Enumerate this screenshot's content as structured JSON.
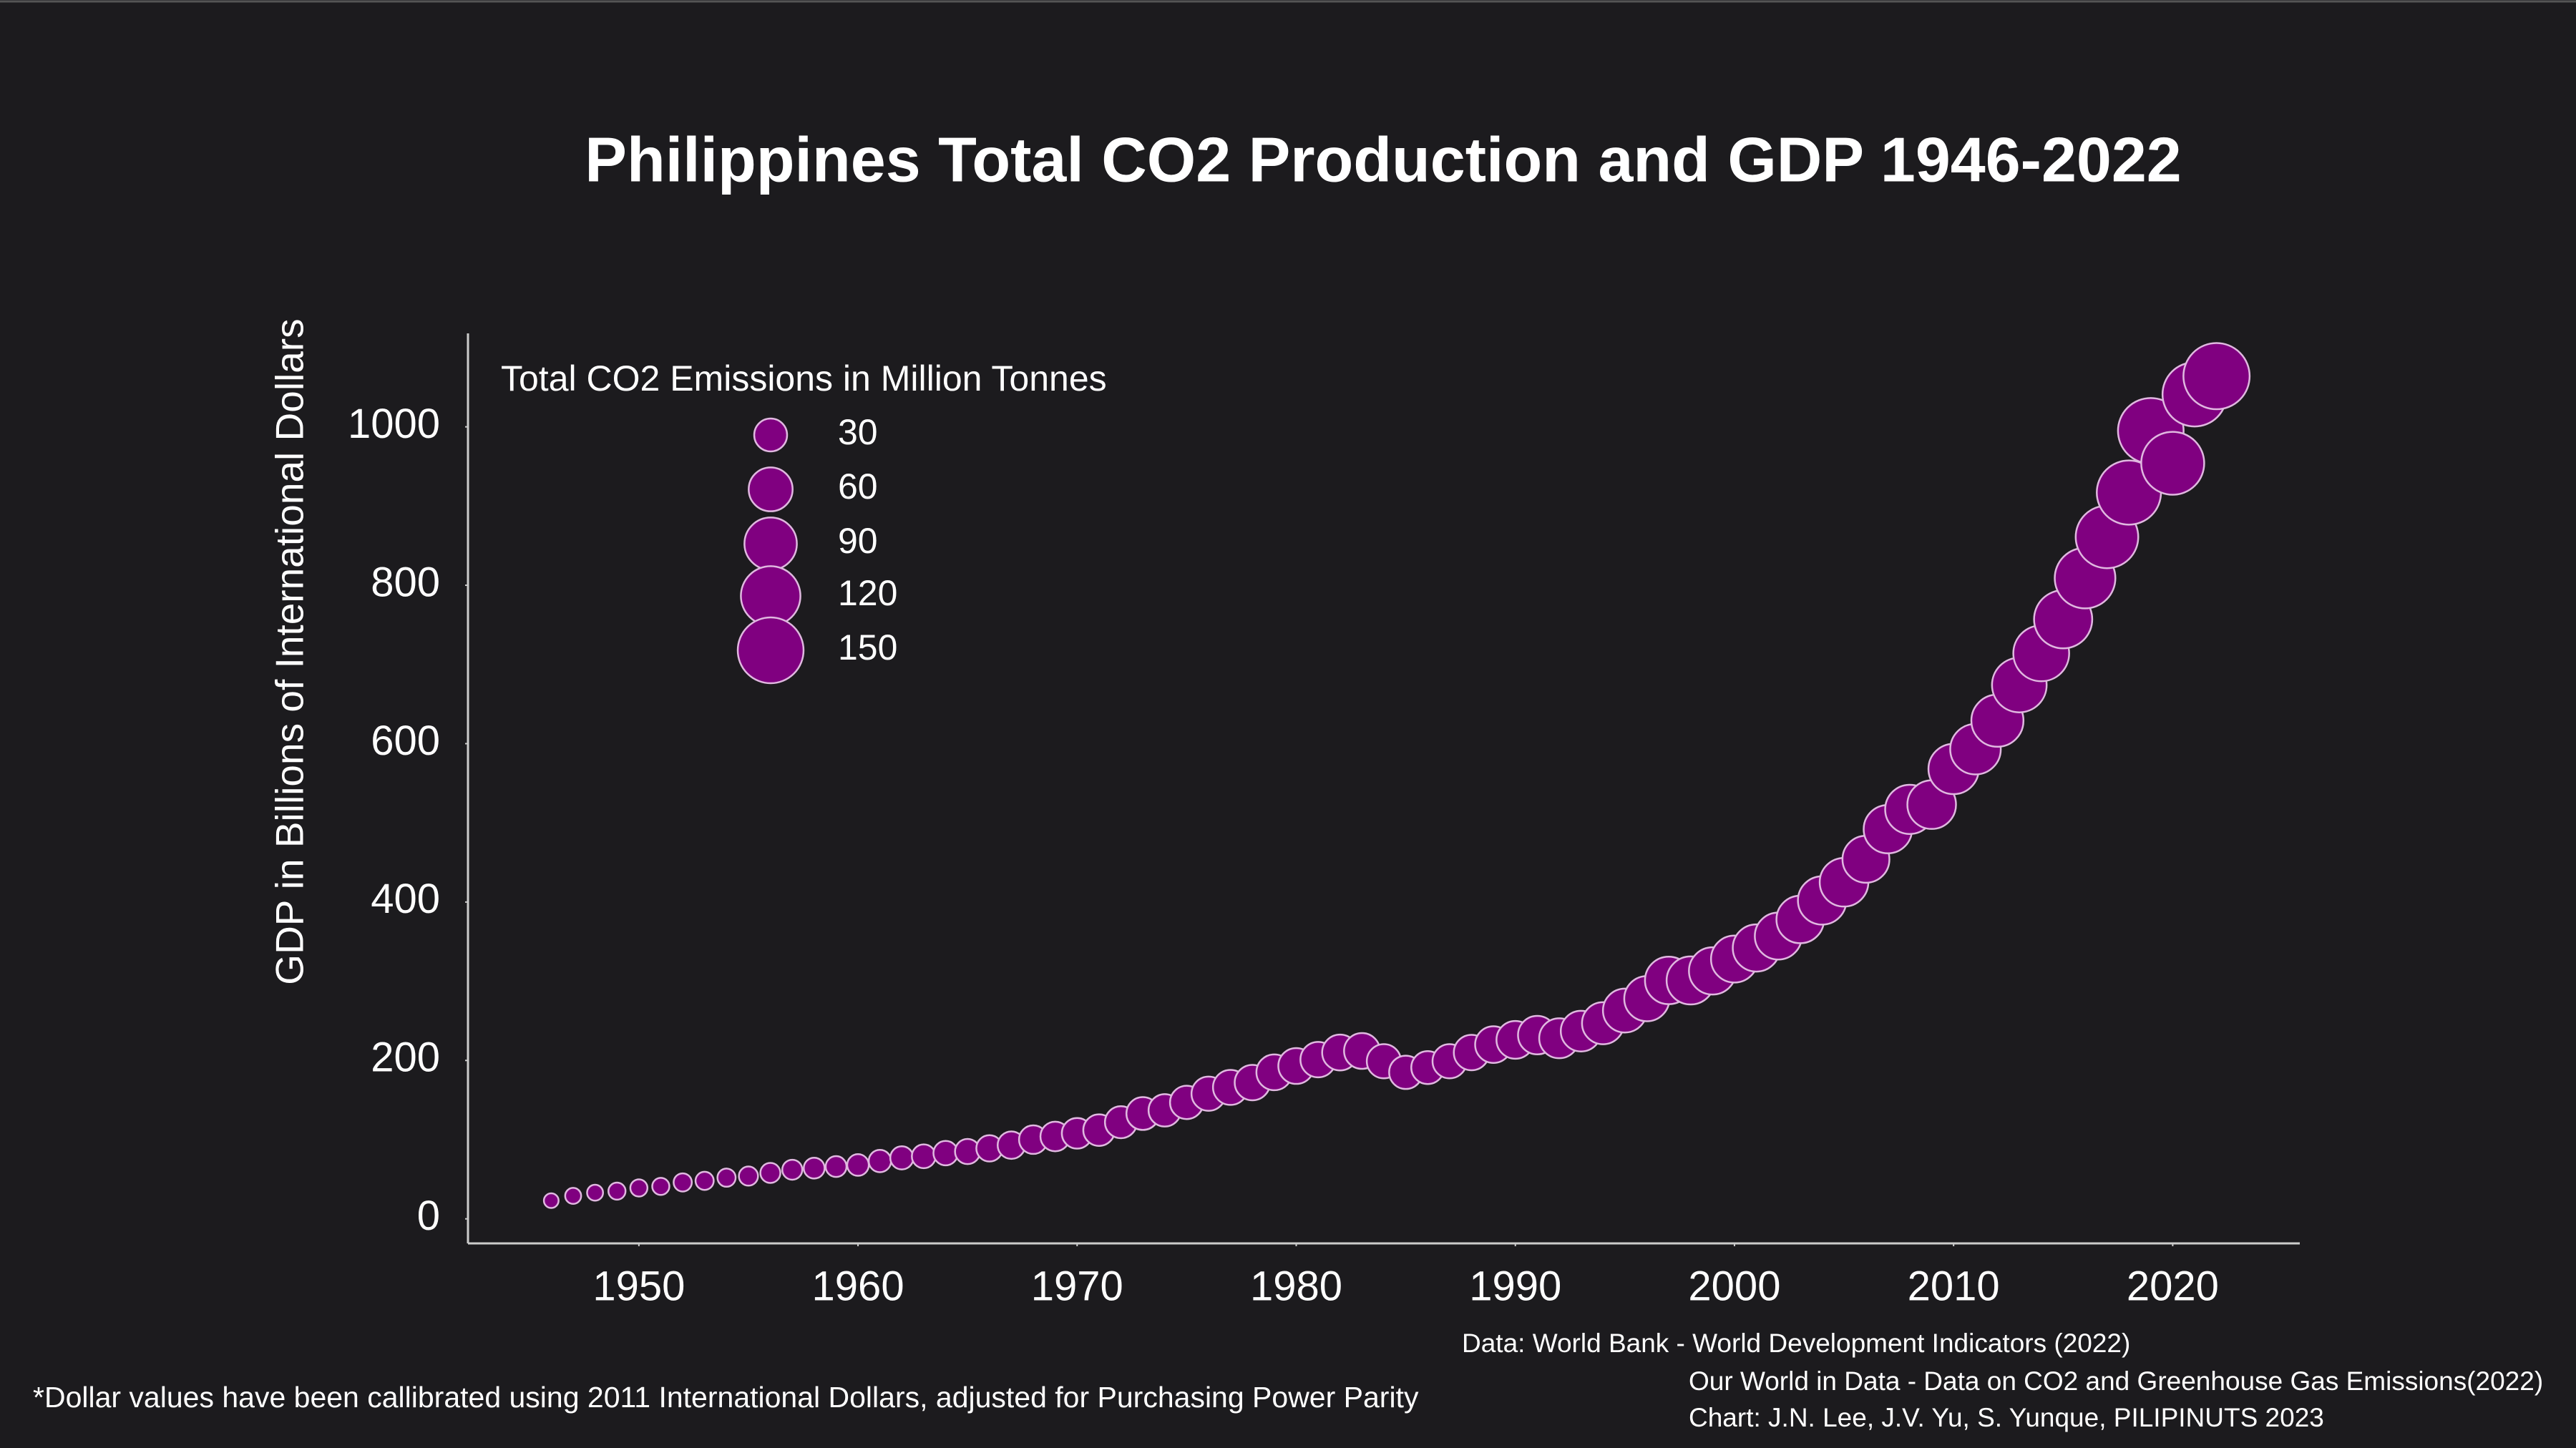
{
  "chart_data": {
    "type": "scatter",
    "title": "Philippines Total CO2 Production and GDP 1946-2022",
    "y_label": "GDP in Billions of International Dollars",
    "x": [
      1946,
      1947,
      1948,
      1949,
      1950,
      1951,
      1952,
      1953,
      1954,
      1955,
      1956,
      1957,
      1958,
      1959,
      1960,
      1961,
      1962,
      1963,
      1964,
      1965,
      1966,
      1967,
      1968,
      1969,
      1970,
      1971,
      1972,
      1973,
      1974,
      1975,
      1976,
      1977,
      1978,
      1979,
      1980,
      1981,
      1982,
      1983,
      1984,
      1985,
      1986,
      1987,
      1988,
      1989,
      1990,
      1991,
      1992,
      1993,
      1994,
      1995,
      1996,
      1997,
      1998,
      1999,
      2000,
      2001,
      2002,
      2003,
      2004,
      2005,
      2006,
      2007,
      2008,
      2009,
      2010,
      2011,
      2012,
      2013,
      2014,
      2015,
      2016,
      2017,
      2018,
      2019,
      2020,
      2021,
      2022
    ],
    "values": [
      23,
      29,
      33,
      35,
      39,
      41,
      46,
      48,
      52,
      54,
      58,
      62,
      64,
      66,
      68,
      73,
      77,
      79,
      83,
      85,
      89,
      93,
      100,
      104,
      108,
      112,
      122,
      133,
      137,
      147,
      158,
      166,
      172,
      185,
      193,
      201,
      210,
      212,
      199,
      185,
      191,
      199,
      210,
      220,
      226,
      232,
      228,
      237,
      247,
      263,
      278,
      301,
      301,
      313,
      328,
      342,
      357,
      378,
      402,
      425,
      454,
      492,
      517,
      523,
      568,
      593,
      629,
      674,
      714,
      757,
      809,
      861,
      917,
      995,
      954,
      1041,
      1064
    ],
    "sizes": [
      3,
      4,
      4,
      5,
      5,
      5,
      6,
      6,
      6,
      7,
      8,
      8,
      9,
      9,
      10,
      11,
      12,
      13,
      14,
      15,
      17,
      19,
      21,
      23,
      25,
      27,
      28,
      30,
      29,
      31,
      33,
      35,
      36,
      37,
      37,
      36,
      37,
      37,
      33,
      31,
      30,
      33,
      36,
      39,
      42,
      44,
      48,
      50,
      54,
      60,
      64,
      72,
      74,
      71,
      70,
      71,
      70,
      72,
      75,
      76,
      70,
      75,
      78,
      76,
      82,
      83,
      89,
      99,
      104,
      114,
      125,
      134,
      142,
      149,
      136,
      142,
      152
    ],
    "color": "#800080",
    "size_legend": {
      "title": "Total CO2 Emissions in Million Tonnes",
      "values": [
        30,
        60,
        90,
        120,
        150
      ]
    },
    "xlim": [
      1942.2,
      2025.8
    ],
    "ylim": [
      -31,
      1118
    ],
    "xticks": [
      1950,
      1960,
      1970,
      1980,
      1990,
      2000,
      2010,
      2020
    ],
    "yticks": [
      0,
      200,
      400,
      600,
      800,
      1000
    ],
    "source_lines": [
      "Data: World Bank - World Development Indicators (2022)",
      "Our World in Data - Data on CO2 and Greenhouse Gas Emissions(2022)",
      "Chart: J.N. Lee, J.V. Yu, S. Yunque, PILIPINUTS 2023"
    ],
    "footnote": "*Dollar values have been callibrated using 2011 International Dollars, adjusted for Purchasing Power Parity"
  }
}
